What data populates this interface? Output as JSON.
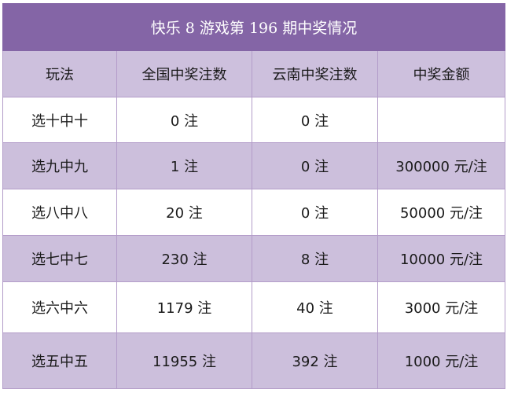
{
  "title": "快乐 8 游戏第 196 期中奖情况",
  "columns": [
    "玩法",
    "全国中奖注数",
    "云南中奖注数",
    "中奖金额"
  ],
  "rows": [
    {
      "play": "选十中十",
      "national": "0 注",
      "yunnan": "0 注",
      "amount": ""
    },
    {
      "play": "选九中九",
      "national": "1 注",
      "yunnan": "0 注",
      "amount": "300000 元/注"
    },
    {
      "play": "选八中八",
      "national": "20 注",
      "yunnan": "0 注",
      "amount": "50000 元/注"
    },
    {
      "play": "选七中七",
      "national": "230 注",
      "yunnan": "8 注",
      "amount": "10000 元/注"
    },
    {
      "play": "选六中六",
      "national": "1179 注",
      "yunnan": "40 注",
      "amount": "3000 元/注"
    },
    {
      "play": "选五中五",
      "national": "11955 注",
      "yunnan": "392 注",
      "amount": "1000 元/注"
    }
  ],
  "colors": {
    "title_bg": "#8465a6",
    "header_bg": "#cdc0dd",
    "even_row_bg": "#ccbfdc",
    "odd_row_bg": "#ffffff"
  }
}
